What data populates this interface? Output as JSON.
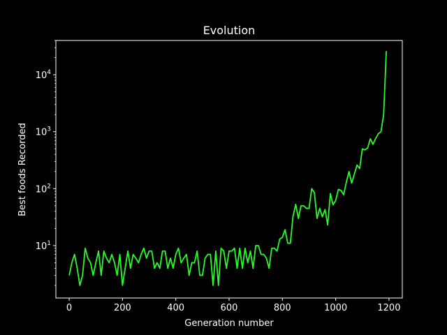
{
  "chart_data": {
    "type": "line",
    "title": "Evolution",
    "xlabel": "Generation number",
    "ylabel": "Best foods Recorded",
    "xlim": [
      -50,
      1250
    ],
    "ylim": [
      1.2,
      40000
    ],
    "yscale": "log",
    "grid": false,
    "background_color": "#000000",
    "line_color": "#2bfb2b",
    "x_ticks": [
      0,
      200,
      400,
      600,
      800,
      1000,
      1200
    ],
    "x_tick_labels": [
      "0",
      "200",
      "400",
      "600",
      "800",
      "1000",
      "1200"
    ],
    "y_ticks": [
      {
        "value": 10,
        "base": "10",
        "exp": "1"
      },
      {
        "value": 100,
        "base": "10",
        "exp": "2"
      },
      {
        "value": 1000,
        "base": "10",
        "exp": "3"
      },
      {
        "value": 10000,
        "base": "10",
        "exp": "4"
      }
    ],
    "series": [
      {
        "x": [
          0,
          10,
          20,
          30,
          40,
          50,
          60,
          70,
          80,
          90,
          100,
          110,
          120,
          130,
          140,
          150,
          160,
          170,
          180,
          190,
          200,
          210,
          220,
          230,
          240,
          250,
          260,
          270,
          280,
          290,
          300,
          310,
          320,
          330,
          340,
          350,
          360,
          370,
          380,
          390,
          400,
          410,
          420,
          430,
          440,
          450,
          460,
          470,
          480,
          490,
          500,
          510,
          520,
          530,
          540,
          550,
          560,
          570,
          580,
          590,
          600,
          610,
          620,
          630,
          640,
          650,
          660,
          670,
          680,
          690,
          700,
          710,
          720,
          730,
          740,
          750,
          760,
          770,
          780,
          790,
          800,
          810,
          820,
          830,
          840,
          850,
          860,
          870,
          880,
          890,
          900,
          910,
          920,
          930,
          940,
          950,
          960,
          970,
          980,
          990,
          1000,
          1010,
          1020,
          1030,
          1040,
          1050,
          1060,
          1070,
          1080,
          1090,
          1100,
          1110,
          1120,
          1130,
          1140,
          1150,
          1160,
          1170,
          1180,
          1190
        ],
        "values": [
          3,
          5,
          7,
          4,
          2,
          3,
          9,
          6,
          5,
          3,
          5,
          8,
          3,
          8,
          6,
          5,
          7,
          5,
          3,
          7,
          2,
          4,
          8,
          4,
          7,
          6,
          5,
          7,
          9,
          6,
          8,
          8,
          4,
          5,
          4,
          8,
          8,
          4,
          6,
          4,
          7,
          9,
          5,
          6,
          7,
          3,
          5,
          5,
          8,
          3,
          3,
          6,
          7,
          7,
          2,
          8,
          2,
          9,
          8,
          4,
          8,
          8,
          9,
          4,
          9,
          4,
          9,
          5,
          8,
          4,
          10,
          10,
          7,
          7,
          6,
          4,
          9,
          9,
          8,
          13,
          14,
          19,
          11,
          11,
          33,
          53,
          30,
          50,
          50,
          45,
          45,
          100,
          85,
          30,
          45,
          32,
          43,
          23,
          82,
          52,
          62,
          97,
          93,
          78,
          130,
          200,
          125,
          180,
          260,
          225,
          500,
          480,
          520,
          750,
          600,
          760,
          920,
          1000,
          2000,
          26000
        ]
      }
    ]
  }
}
